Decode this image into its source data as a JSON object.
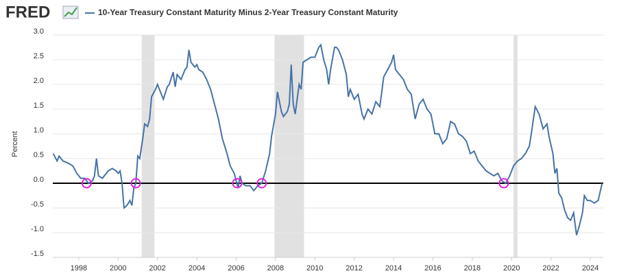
{
  "chart_data": {
    "type": "line",
    "logo": "FRED",
    "ylabel": "Percent",
    "series": [
      {
        "name": "10-Year Treasury Constant Maturity Minus 2-Year Treasury Constant Maturity",
        "color": "#4572a7",
        "values": [
          0.6,
          0.45,
          0.55,
          0.45,
          0.4,
          0.35,
          0.2,
          0.1,
          0.1,
          0.0,
          0.05,
          0.15,
          0.5,
          0.15,
          0.1,
          0.25,
          0.3,
          0.25,
          0.2,
          0.25,
          0.0,
          -0.5,
          -0.45,
          -0.35,
          -0.45,
          -0.1,
          0.0,
          0.55,
          0.5,
          0.9,
          1.2,
          1.15,
          1.3,
          1.75,
          1.9,
          2.0,
          1.9,
          1.7,
          1.95,
          2.0,
          2.25,
          1.95,
          2.2,
          2.1,
          2.3,
          2.35,
          2.7,
          2.45,
          2.35,
          2.4,
          2.3,
          2.25,
          2.1,
          1.9,
          1.6,
          1.3,
          0.9,
          0.65,
          0.35,
          0.2,
          0.05,
          -0.1,
          0.15,
          0.0,
          -0.05,
          -0.05,
          -0.15,
          -0.05,
          0.0,
          0.25,
          0.6,
          0.95,
          1.4,
          1.85,
          1.45,
          1.35,
          1.45,
          1.6,
          2.4,
          1.6,
          1.4,
          2.0,
          1.9,
          2.45,
          2.5,
          2.55,
          2.55,
          2.75,
          2.8,
          2.5,
          2.3,
          2.0,
          2.3,
          2.75,
          2.75,
          2.7,
          2.5,
          2.2,
          1.75,
          1.9,
          1.7,
          1.8,
          1.4,
          1.3,
          1.5,
          1.4,
          1.65,
          1.55,
          2.15,
          2.3,
          2.45,
          2.6,
          2.3,
          2.2,
          2.1,
          1.9,
          1.8,
          1.3,
          1.6,
          1.7,
          1.5,
          1.4,
          1.0,
          1.0,
          0.8,
          0.9,
          1.25,
          1.2,
          1.0,
          0.95,
          0.85,
          0.6,
          0.65,
          0.45,
          0.35,
          0.25,
          0.2,
          0.15,
          0.2,
          0.05,
          0.0,
          0.15,
          0.25,
          0.35,
          0.45,
          0.5,
          0.6,
          0.75,
          1.0,
          1.55,
          1.4,
          1.1,
          1.2,
          0.95,
          0.6,
          0.2,
          0.3,
          -0.2,
          -0.3,
          -0.55,
          -0.7,
          -0.75,
          -0.6,
          -1.05,
          -0.85,
          -0.6,
          -0.25,
          -0.35,
          -0.35,
          -0.4,
          -0.35,
          0.0
        ]
      }
    ],
    "x": [
      1996.7,
      1996.9,
      1997.0,
      1997.2,
      1997.5,
      1997.7,
      1997.9,
      1998.1,
      1998.3,
      1998.5,
      1998.7,
      1998.8,
      1998.9,
      1999.0,
      1999.2,
      1999.5,
      1999.7,
      1999.9,
      2000.0,
      2000.1,
      2000.2,
      2000.3,
      2000.45,
      2000.6,
      2000.7,
      2000.8,
      2000.9,
      2001.0,
      2001.1,
      2001.25,
      2001.35,
      2001.5,
      2001.6,
      2001.7,
      2001.9,
      2002.0,
      2002.1,
      2002.3,
      2002.5,
      2002.6,
      2002.8,
      2002.9,
      2003.0,
      2003.2,
      2003.4,
      2003.5,
      2003.6,
      2003.7,
      2003.9,
      2004.0,
      2004.1,
      2004.3,
      2004.5,
      2004.7,
      2004.9,
      2005.1,
      2005.3,
      2005.5,
      2005.7,
      2005.9,
      2006.0,
      2006.1,
      2006.2,
      2006.3,
      2006.5,
      2006.7,
      2006.9,
      2007.1,
      2007.3,
      2007.5,
      2007.7,
      2007.8,
      2008.0,
      2008.1,
      2008.3,
      2008.4,
      2008.6,
      2008.7,
      2008.8,
      2008.9,
      2009.0,
      2009.2,
      2009.3,
      2009.4,
      2009.6,
      2009.8,
      2010.0,
      2010.2,
      2010.3,
      2010.45,
      2010.6,
      2010.7,
      2010.8,
      2011.0,
      2011.1,
      2011.2,
      2011.4,
      2011.6,
      2011.7,
      2011.8,
      2012.0,
      2012.2,
      2012.4,
      2012.5,
      2012.7,
      2012.9,
      2013.1,
      2013.3,
      2013.5,
      2013.7,
      2013.9,
      2014.0,
      2014.1,
      2014.3,
      2014.5,
      2014.7,
      2014.9,
      2015.1,
      2015.3,
      2015.5,
      2015.7,
      2015.9,
      2016.1,
      2016.3,
      2016.5,
      2016.7,
      2016.9,
      2017.1,
      2017.3,
      2017.5,
      2017.7,
      2017.9,
      2018.1,
      2018.3,
      2018.5,
      2018.7,
      2018.9,
      2019.1,
      2019.3,
      2019.5,
      2019.7,
      2019.9,
      2020.0,
      2020.1,
      2020.3,
      2020.5,
      2020.7,
      2020.9,
      2021.0,
      2021.2,
      2021.4,
      2021.6,
      2021.8,
      2021.9,
      2022.1,
      2022.2,
      2022.3,
      2022.4,
      2022.55,
      2022.7,
      2022.85,
      2023.0,
      2023.15,
      2023.3,
      2023.45,
      2023.6,
      2023.7,
      2023.85,
      2024.0,
      2024.2,
      2024.4,
      2024.6
    ],
    "xlim": [
      1996.68,
      2024.66
    ],
    "xticks": [
      1998,
      2000,
      2002,
      2004,
      2006,
      2008,
      2010,
      2012,
      2014,
      2016,
      2018,
      2020,
      2022,
      2024
    ],
    "ylim": [
      -1.5,
      3
    ],
    "yticks": [
      -1.5,
      {
        "value": -1,
        "label": "-1.0"
      },
      -0.5,
      {
        "value": 0,
        "label": "0.0"
      },
      0.5,
      {
        "value": 1,
        "label": "1.0"
      },
      1.5,
      {
        "value": 2,
        "label": "2.0"
      },
      2.5,
      {
        "value": 3,
        "label": "3.0"
      }
    ],
    "grid": true,
    "reference_line": 0,
    "shaded_periods": [
      [
        2001.2,
        2001.85
      ],
      [
        2007.95,
        2009.45
      ],
      [
        2020.1,
        2020.3
      ]
    ],
    "shade_color": "#e1e1e1",
    "highlights": [
      {
        "x": 1998.4,
        "y": 0
      },
      {
        "x": 2000.9,
        "y": 0
      },
      {
        "x": 2006.05,
        "y": 0
      },
      {
        "x": 2007.3,
        "y": 0
      },
      {
        "x": 2019.6,
        "y": 0
      }
    ],
    "highlight_color": "#e020e0"
  }
}
